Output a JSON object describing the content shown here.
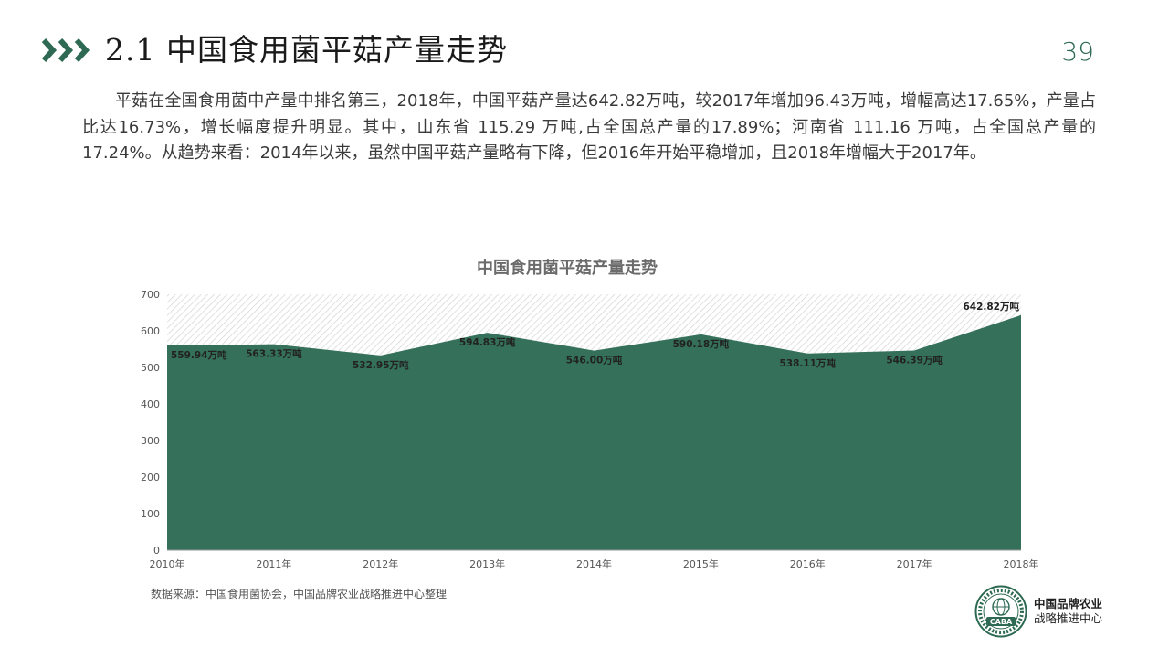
{
  "header": {
    "title": "2.1 中国食用菌平菇产量走势",
    "page_number": "39",
    "accent_color": "#2e6a53"
  },
  "body_text": "平菇在全国食用菌中产量中排名第三，2018年，中国平菇产量达642.82万吨，较2017年增加96.43万吨，增幅高达17.65%，产量占比达16.73%，增长幅度提升明显。其中，山东省 115.29 万吨,占全国总产量的17.89%；河南省 111.16 万吨，占全国总产量的 17.24%。从趋势来看：2014年以来，虽然中国平菇产量略有下降，但2016年开始平稳增加，且2018年增幅大于2017年。",
  "chart_data": {
    "type": "area",
    "title": "中国食用菌平菇产量走势",
    "categories": [
      "2010年",
      "2011年",
      "2012年",
      "2013年",
      "2014年",
      "2015年",
      "2016年",
      "2017年",
      "2018年"
    ],
    "series": [
      {
        "values": [
          559.94,
          563.33,
          532.95,
          594.83,
          546.0,
          590.18,
          538.11,
          546.39,
          642.82
        ],
        "labels": [
          "559.94万吨",
          "563.33万吨",
          "532.95万吨",
          "594.83万吨",
          "546.00万吨",
          "590.18万吨",
          "538.11万吨",
          "546.39万吨",
          "642.82万吨"
        ]
      }
    ],
    "ylim": [
      0,
      700
    ],
    "yticks": [
      "0",
      "100",
      "200",
      "300",
      "400",
      "500",
      "600",
      "700"
    ],
    "xlabel": "",
    "ylabel": "",
    "grid": false,
    "fill_color": "#34705a",
    "background_pattern": "diagonal-hatch"
  },
  "footer": {
    "source": "数据来源：中国食用菌协会，中国品牌农业战略推进中心整理",
    "logo_abbr": "CABA",
    "org_name_line1": "中国品牌农业",
    "org_name_line2": "战略推进中心"
  }
}
